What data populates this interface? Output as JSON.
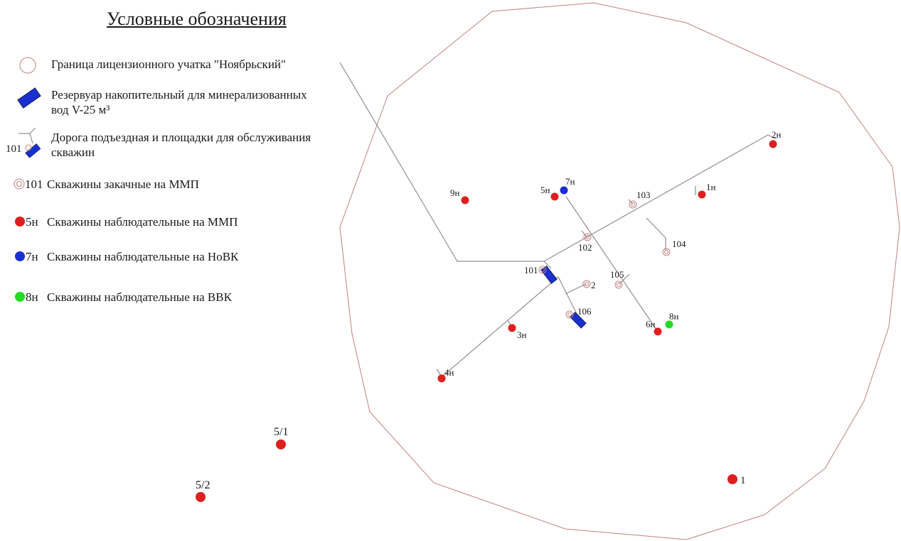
{
  "legend": {
    "title": "Условные обозначения",
    "items": [
      {
        "key": "boundary",
        "label": "Граница лицензионного учатка \"Ноябрьский\""
      },
      {
        "key": "reservoir",
        "label_line1": "Резервуар накопительный для минерализованных",
        "label_line2": "вод V-25 м³"
      },
      {
        "key": "road",
        "prefix": "101",
        "label_line1": "Дорога подъездная и площадки для обслуживания",
        "label_line2": "скважин"
      },
      {
        "key": "injection",
        "prefix": "101",
        "label": "Скважины закачные на ММП"
      },
      {
        "key": "obs_mmp",
        "prefix": "5н",
        "label": "Скважины наблюдательные на ММП"
      },
      {
        "key": "obs_novk",
        "prefix": "7н",
        "label": "Скважины наблюдательные на НоВК"
      },
      {
        "key": "obs_vvk",
        "prefix": "8н",
        "label": "Скважины наблюдательные на ВВК"
      }
    ]
  },
  "colors": {
    "boundary": "#c08080",
    "road": "#909090",
    "obs_mmp": "#dd1f1f",
    "obs_novk": "#1a2fcf",
    "obs_vvk": "#22dd22",
    "reservoir": "#1a2fcf",
    "injection": "#c08080"
  },
  "map": {
    "injection_wells": [
      {
        "label": "102"
      },
      {
        "label": "103"
      },
      {
        "label": "104"
      },
      {
        "label": "105"
      },
      {
        "label": "2"
      },
      {
        "label": "101"
      },
      {
        "label": "106"
      }
    ],
    "obs_mmp_wells": [
      {
        "label": "2н"
      },
      {
        "label": "1н"
      },
      {
        "label": "9н"
      },
      {
        "label": "5н"
      },
      {
        "label": "3н"
      },
      {
        "label": "4н"
      },
      {
        "label": "6н"
      },
      {
        "label": "5/1"
      },
      {
        "label": "5/2"
      },
      {
        "label": "1"
      }
    ],
    "obs_novk_wells": [
      {
        "label": "7н"
      }
    ],
    "obs_vvk_wells": [
      {
        "label": "8н"
      }
    ]
  }
}
